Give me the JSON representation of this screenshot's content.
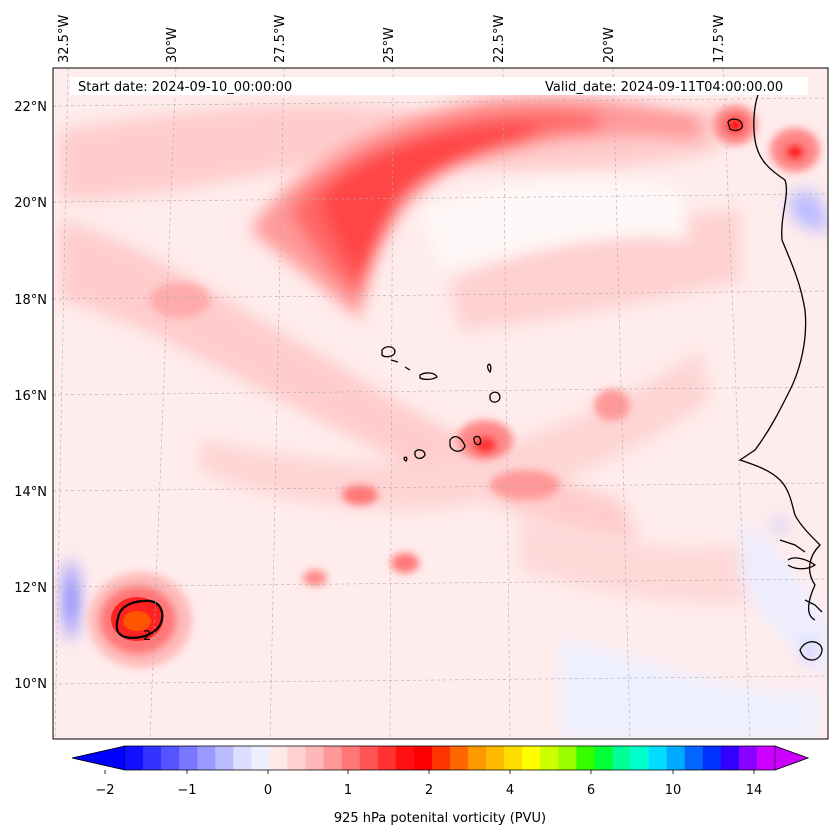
{
  "header": {
    "start_date": "Start date: 2024-09-10_00:00:00",
    "valid_date": "Valid_date: 2024-09-11T04:00:00.00"
  },
  "lon_labels": [
    "32.5°W",
    "30°W",
    "27.5°W",
    "25°W",
    "22.5°W",
    "20°W",
    "17.5°W"
  ],
  "lat_labels": [
    "22°N",
    "20°N",
    "18°N",
    "16°N",
    "14°N",
    "12°N",
    "10°N"
  ],
  "colorbar": {
    "label": "925 hPa potenital vorticity (PVU)",
    "tick_labels": [
      "−2",
      "−1",
      "0",
      "1",
      "2",
      "4",
      "6",
      "10",
      "14"
    ],
    "colors": [
      "#1010ff",
      "#3333ff",
      "#5555ff",
      "#7777ff",
      "#9999ff",
      "#bbbbff",
      "#ddddff",
      "#eeeeff",
      "#ffe8e8",
      "#ffd0d0",
      "#ffb8b8",
      "#ff9999",
      "#ff7777",
      "#ff5555",
      "#ff3333",
      "#ff1111",
      "#ff0000",
      "#ff3300",
      "#ff6600",
      "#ff9900",
      "#ffbb00",
      "#ffdd00",
      "#ffff00",
      "#ccff00",
      "#99ff00",
      "#33ff00",
      "#00ff33",
      "#00ff99",
      "#00ffcc",
      "#00ddff",
      "#00aaff",
      "#0066ff",
      "#0033ff",
      "#3300ff",
      "#8800ff",
      "#cc00ff"
    ],
    "extend_low": "#0000ff",
    "extend_high": "#cc00ff"
  },
  "map": {
    "field": "925 hPa potential vorticity",
    "contour_label": "2",
    "coast_color": "#000000"
  }
}
